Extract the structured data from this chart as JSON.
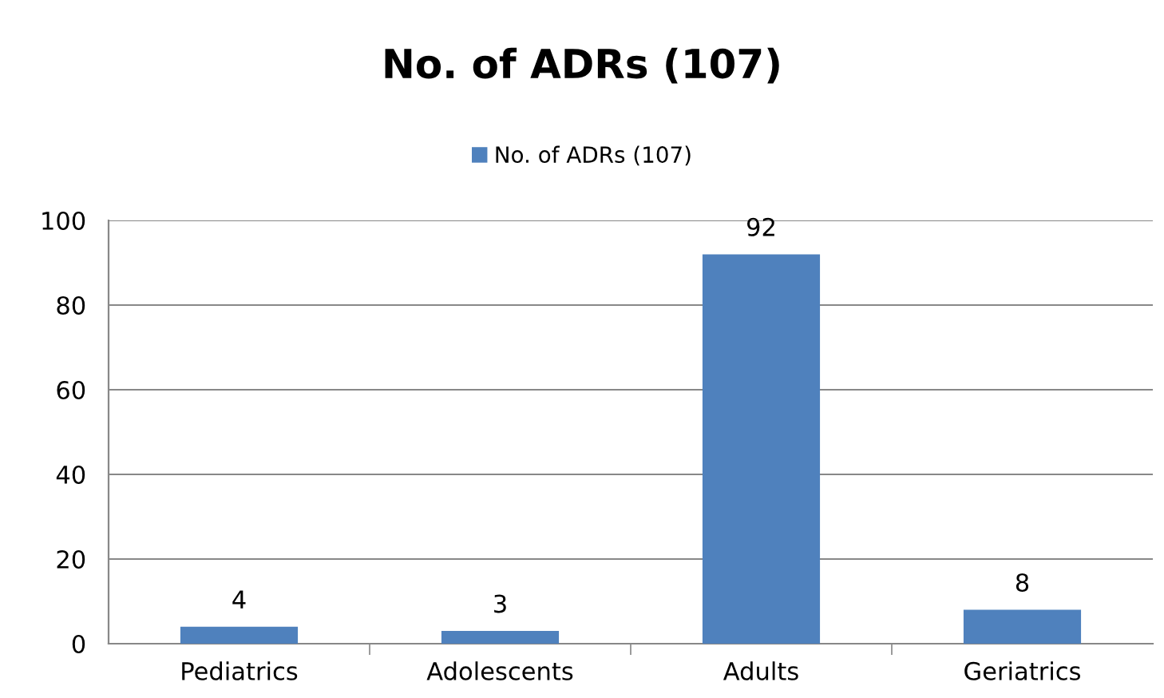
{
  "chart_data": {
    "type": "bar",
    "title": "No. of ADRs (107)",
    "categories": [
      "Pediatrics",
      "Adolescents",
      "Adults",
      "Geriatrics"
    ],
    "series": [
      {
        "name": "No. of ADRs (107)",
        "color": "#4f81bd",
        "values": [
          4,
          3,
          92,
          8
        ]
      }
    ],
    "ylim": [
      0,
      100
    ],
    "yticks": [
      0,
      20,
      40,
      60,
      80,
      100
    ],
    "grid": "y",
    "legend": "top",
    "data_labels": true
  }
}
